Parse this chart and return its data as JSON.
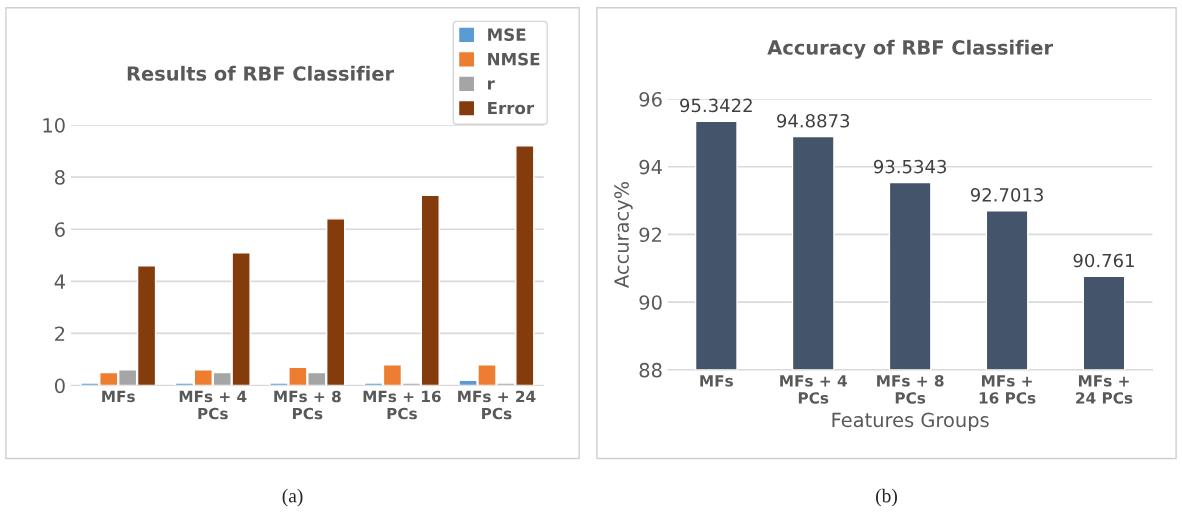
{
  "chart_data": [
    {
      "type": "bar",
      "title": "Results of RBF Classifier",
      "categories": [
        "MFs",
        "MFs + 4\nPCs",
        "MFs + 8\nPCs",
        "MFs + 16\nPCs",
        "MFs + 24\nPCs"
      ],
      "series": [
        {
          "name": "MSE",
          "color": "#5b9bd5",
          "values": [
            0.1,
            0.1,
            0.1,
            0.1,
            0.2
          ]
        },
        {
          "name": "NMSE",
          "color": "#ed7d31",
          "values": [
            0.5,
            0.6,
            0.7,
            0.8,
            0.8
          ]
        },
        {
          "name": "r",
          "color": "#a5a5a5",
          "values": [
            0.6,
            0.5,
            0.5,
            0.1,
            0.1
          ]
        },
        {
          "name": "Error",
          "color": "#843c0c",
          "values": [
            4.6,
            5.1,
            6.4,
            7.3,
            9.2
          ]
        }
      ],
      "ylim": [
        0,
        10
      ],
      "yticks": [
        0,
        2,
        4,
        6,
        8,
        10
      ],
      "grid": "y",
      "legend": "top right",
      "annotations": [
        "(a)"
      ]
    },
    {
      "type": "bar",
      "title": "Accuracy of RBF Classifier",
      "xlabel": "Features Groups",
      "ylabel": "Accuracy%",
      "categories": [
        "MFs",
        "MFs + 4\nPCs",
        "MFs + 8\nPCs",
        "MFs +\n16 PCs",
        "MFs +\n24 PCs"
      ],
      "series": [
        {
          "color": "#44546a",
          "values": [
            95.3422,
            94.8873,
            93.5343,
            92.7013,
            90.761
          ]
        }
      ],
      "ylim": [
        88,
        96
      ],
      "yticks": [
        88,
        90,
        92,
        94,
        96
      ],
      "grid": "y",
      "data_labels": true,
      "annotations": [
        "(b)"
      ]
    }
  ]
}
